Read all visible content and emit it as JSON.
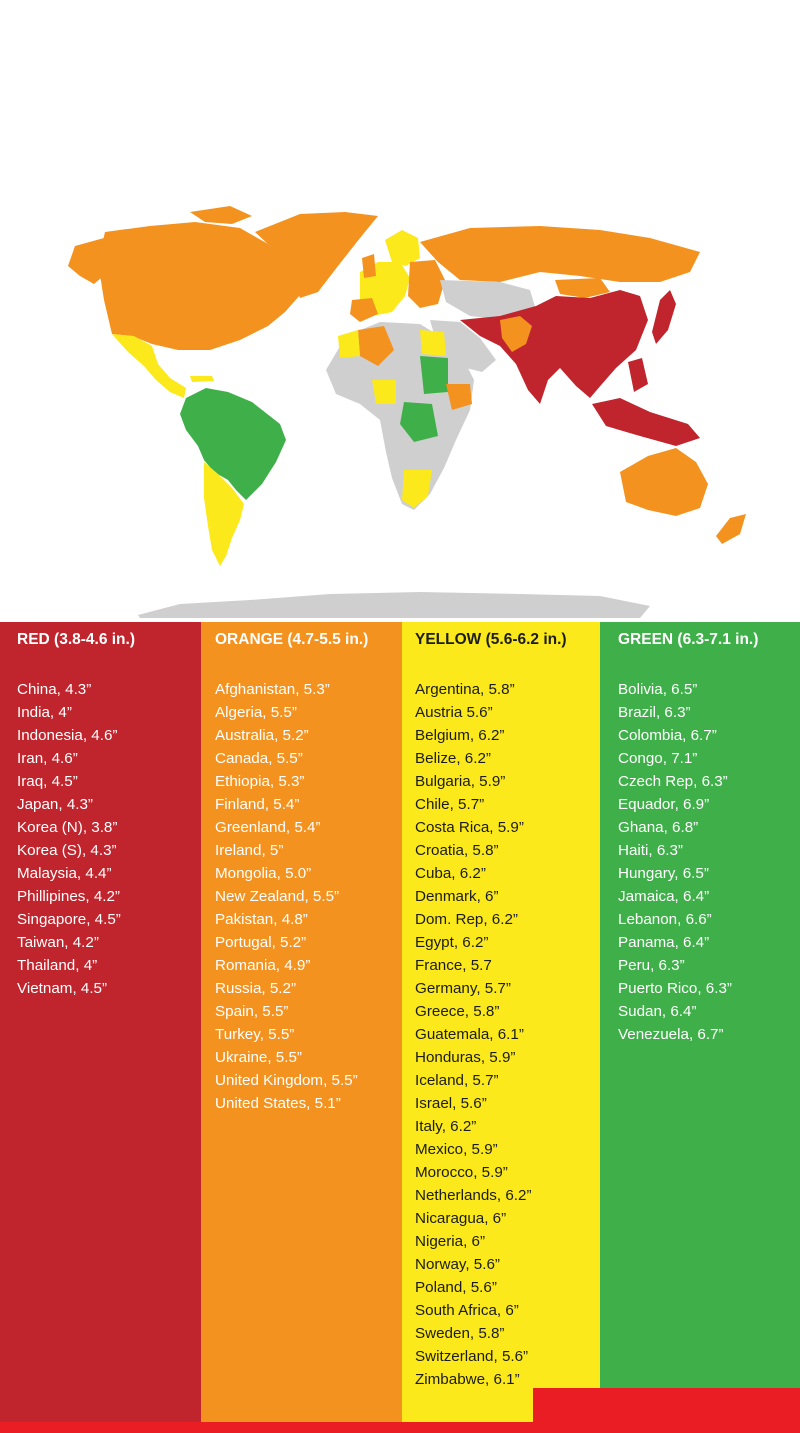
{
  "colors": {
    "red": "#c0242c",
    "orange": "#f4921f",
    "yellow": "#fbe91b",
    "green": "#3fb049",
    "no_data": "#cfcfcf",
    "accent_red": "#ea1c24"
  },
  "legend": [
    {
      "key": "red",
      "title": "RED (3.8-4.6 in.)",
      "items": [
        "China, 4.3”",
        "India, 4”",
        "Indonesia, 4.6”",
        "Iran, 4.6”",
        "Iraq, 4.5”",
        "Japan, 4.3”",
        "Korea (N), 3.8”",
        "Korea (S), 4.3”",
        "Malaysia, 4.4”",
        "Phillipines, 4.2”",
        "Singapore, 4.5”",
        "Taiwan, 4.2”",
        "Thailand, 4”",
        "Vietnam, 4.5”"
      ]
    },
    {
      "key": "orange",
      "title": "ORANGE (4.7-5.5 in.)",
      "items": [
        "Afghanistan, 5.3”",
        "Algeria, 5.5”",
        "Australia, 5.2”",
        "Canada, 5.5”",
        "Ethiopia, 5.3”",
        "Finland, 5.4”",
        "Greenland, 5.4”",
        "Ireland, 5”",
        "Mongolia, 5.0”",
        "New Zealand, 5.5”",
        "Pakistan, 4.8”",
        "Portugal, 5.2”",
        "Romania, 4.9”",
        "Russia, 5.2”",
        "Spain, 5.5”",
        "Turkey, 5.5”",
        "Ukraine, 5.5”",
        "United Kingdom, 5.5”",
        "United States, 5.1”"
      ]
    },
    {
      "key": "yellow",
      "title": "YELLOW (5.6-6.2 in.)",
      "items": [
        "Argentina, 5.8”",
        "Austria 5.6”",
        "Belgium, 6.2”",
        "Belize, 6.2”",
        "Bulgaria, 5.9”",
        "Chile, 5.7”",
        "Costa Rica, 5.9”",
        "Croatia, 5.8”",
        "Cuba, 6.2”",
        "Denmark, 6”",
        "Dom. Rep, 6.2”",
        "Egypt, 6.2”",
        "France, 5.7",
        "Germany, 5.7”",
        "Greece, 5.8”",
        "Guatemala, 6.1”",
        "Honduras, 5.9”",
        "Iceland, 5.7”",
        "Israel, 5.6”",
        "Italy, 6.2”",
        "Mexico, 5.9”",
        "Morocco, 5.9”",
        "Netherlands, 6.2”",
        "Nicaragua, 6”",
        "Nigeria, 6”",
        "Norway, 5.6”",
        "Poland, 5.6”",
        "South Africa, 6”",
        "Sweden, 5.8”",
        "Switzerland, 5.6”",
        "Zimbabwe, 6.1”"
      ]
    },
    {
      "key": "green",
      "title": "GREEN (6.3-7.1 in.)",
      "items": [
        "Bolivia, 6.5”",
        "Brazil, 6.3”",
        "Colombia, 6.7”",
        "Congo, 7.1”",
        "Czech Rep, 6.3”",
        "Equador, 6.9”",
        "Ghana, 6.8”",
        "Haiti, 6.3”",
        "Hungary, 6.5”",
        "Jamaica, 6.4”",
        "Lebanon, 6.6”",
        "Panama, 6.4”",
        "Peru, 6.3”",
        "Puerto Rico, 6.3”",
        "Sudan, 6.4”",
        "Venezuela, 6.7”"
      ]
    }
  ]
}
